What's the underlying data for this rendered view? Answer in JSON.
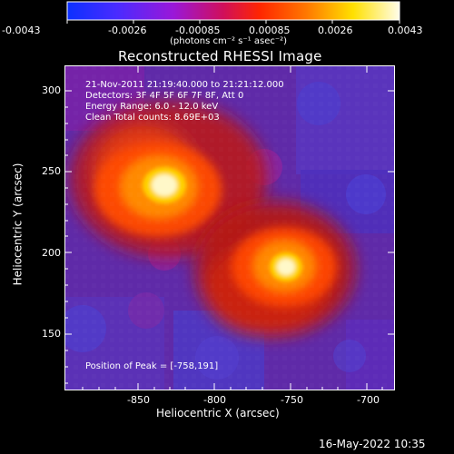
{
  "image": {
    "title": "Reconstructed RHESSI Image",
    "timestamp": "16-May-2022 10:35",
    "info_lines": [
      "21-Nov-2011 21:19:40.000 to 21:21:12.000",
      "Detectors: 3F 4F 5F 6F 7F 8F, Att 0",
      "Energy Range: 6.0 - 12.0 keV",
      "Clean     Total counts: 8.69E+03"
    ],
    "peak_label": "Position of Peak = [-758,191]",
    "colors": {
      "background": "#000000",
      "text": "#ffffff",
      "low": "#2030ff",
      "mid_low": "#8020ff",
      "mid": "#ff2000",
      "high": "#ffff00",
      "top": "#fffbe0"
    }
  },
  "colorbar": {
    "tick_labels": [
      "-0.0043",
      "-0.0026",
      "-0.00085",
      "0.00085",
      "0.0026",
      "0.0043"
    ],
    "unit_label": "(photons cm⁻² s⁻¹ asec⁻²)"
  },
  "chart_data": {
    "type": "heatmap",
    "title": "Reconstructed RHESSI Image",
    "xlabel": "Heliocentric X (arcsec)",
    "ylabel": "Heliocentric Y (arcsec)",
    "xlim": [
      -890,
      -700
    ],
    "ylim": [
      120,
      310
    ],
    "x_ticks": [
      -850,
      -800,
      -750,
      -700
    ],
    "y_ticks": [
      150,
      200,
      250,
      300
    ],
    "colorbar_range": [
      -0.0043,
      0.0043
    ],
    "sources": [
      {
        "x": -828,
        "y": 245,
        "level": 0.0043
      },
      {
        "x": -758,
        "y": 191,
        "level": 0.0043
      }
    ],
    "peak": [
      -758,
      191
    ],
    "grid": false
  }
}
